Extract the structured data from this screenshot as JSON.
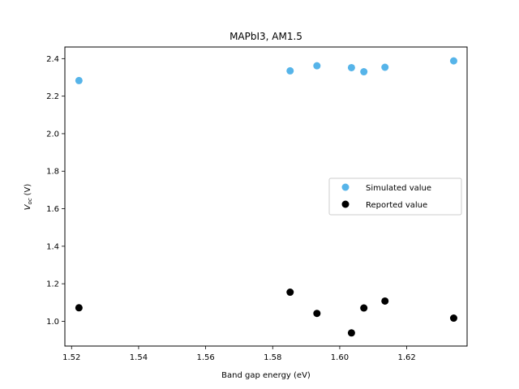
{
  "chart_data": {
    "type": "scatter",
    "title": "MAPbI3, AM1.5",
    "xlabel": "Band gap energy (eV)",
    "ylabel_main": "V",
    "ylabel_sub": "oc",
    "ylabel_unit": "(V)",
    "xlim": [
      1.518,
      1.638
    ],
    "ylim": [
      0.868,
      2.462
    ],
    "xticks": [
      1.52,
      1.54,
      1.56,
      1.58,
      1.6,
      1.62
    ],
    "xtick_labels": [
      "1.52",
      "1.54",
      "1.56",
      "1.58",
      "1.60",
      "1.62"
    ],
    "yticks": [
      1.0,
      1.2,
      1.4,
      1.6,
      1.8,
      2.0,
      2.2,
      2.4
    ],
    "ytick_labels": [
      "1.0",
      "1.2",
      "1.4",
      "1.6",
      "1.8",
      "2.0",
      "2.2",
      "2.4"
    ],
    "grid": false,
    "legend_position": "center-right",
    "series": [
      {
        "name": "Simulated value",
        "color": "#56b4e9",
        "points": [
          [
            1.5222,
            2.283
          ],
          [
            1.5852,
            2.335
          ],
          [
            1.5932,
            2.362
          ],
          [
            1.6035,
            2.352
          ],
          [
            1.6072,
            2.33
          ],
          [
            1.6135,
            2.354
          ],
          [
            1.634,
            2.388
          ]
        ]
      },
      {
        "name": "Reported value",
        "color": "#000000",
        "points": [
          [
            1.5222,
            1.072
          ],
          [
            1.5852,
            1.155
          ],
          [
            1.5932,
            1.042
          ],
          [
            1.6035,
            0.938
          ],
          [
            1.6072,
            1.071
          ],
          [
            1.6135,
            1.108
          ],
          [
            1.634,
            1.017
          ]
        ]
      }
    ]
  }
}
